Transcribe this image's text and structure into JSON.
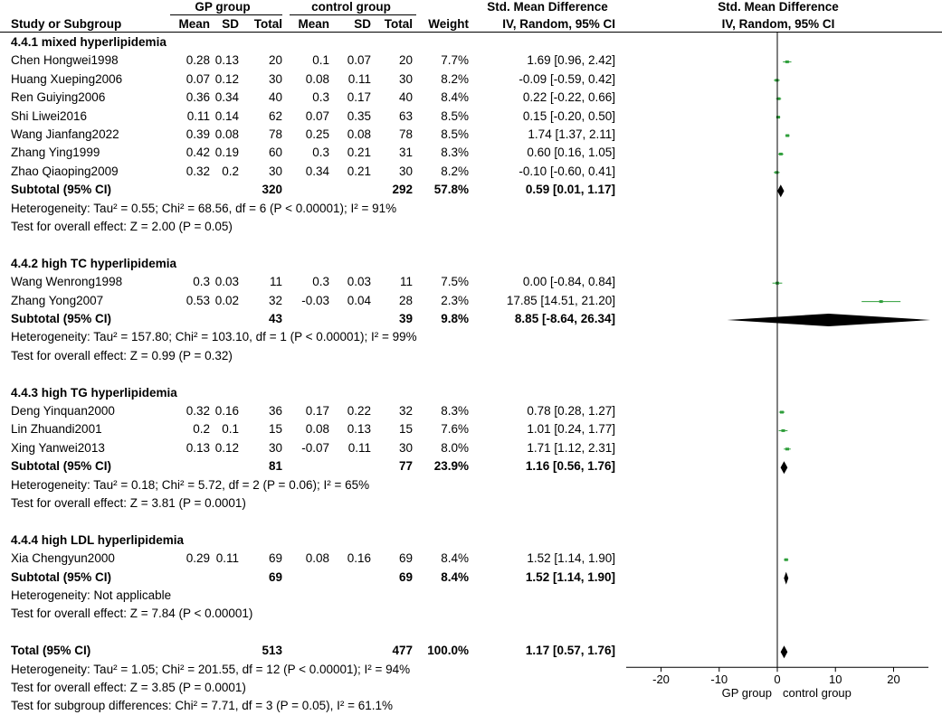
{
  "header": {
    "gp_group": "GP group",
    "control_group": "control group",
    "smd_col": "Std. Mean Difference",
    "smd_method": "IV, Random, 95% CI",
    "plot_title": "Std. Mean Difference",
    "plot_method": "IV, Random, 95% CI",
    "study_col": "Study or Subgroup",
    "mean": "Mean",
    "sd": "SD",
    "total": "Total",
    "weight": "Weight"
  },
  "chart_data": {
    "type": "forest",
    "x_axis": {
      "ticks": [
        "-20",
        "-10",
        "0",
        "10",
        "20"
      ],
      "tick_values": [
        -20,
        -10,
        0,
        10,
        20
      ],
      "range": [
        -26,
        26
      ],
      "left_label": "GP group",
      "right_label": "control group"
    },
    "groups": [
      {
        "name": "4.4.1 mixed hyperlipidemia",
        "studies": [
          {
            "name": "Chen Hongwei1998",
            "gp_mean": "0.28",
            "gp_sd": "0.13",
            "gp_total": "20",
            "ctl_mean": "0.1",
            "ctl_sd": "0.07",
            "ctl_total": "20",
            "weight": "7.7%",
            "ci": "1.69 [0.96, 2.42]",
            "est": 1.69,
            "lo": 0.96,
            "hi": 2.42
          },
          {
            "name": "Huang Xueping2006",
            "gp_mean": "0.07",
            "gp_sd": "0.12",
            "gp_total": "30",
            "ctl_mean": "0.08",
            "ctl_sd": "0.11",
            "ctl_total": "30",
            "weight": "8.2%",
            "ci": "-0.09 [-0.59, 0.42]",
            "est": -0.09,
            "lo": -0.59,
            "hi": 0.42
          },
          {
            "name": "Ren Guiying2006",
            "gp_mean": "0.36",
            "gp_sd": "0.34",
            "gp_total": "40",
            "ctl_mean": "0.3",
            "ctl_sd": "0.17",
            "ctl_total": "40",
            "weight": "8.4%",
            "ci": "0.22 [-0.22, 0.66]",
            "est": 0.22,
            "lo": -0.22,
            "hi": 0.66
          },
          {
            "name": "Shi Liwei2016",
            "gp_mean": "0.11",
            "gp_sd": "0.14",
            "gp_total": "62",
            "ctl_mean": "0.07",
            "ctl_sd": "0.35",
            "ctl_total": "63",
            "weight": "8.5%",
            "ci": "0.15 [-0.20, 0.50]",
            "est": 0.15,
            "lo": -0.2,
            "hi": 0.5
          },
          {
            "name": "Wang Jianfang2022",
            "gp_mean": "0.39",
            "gp_sd": "0.08",
            "gp_total": "78",
            "ctl_mean": "0.25",
            "ctl_sd": "0.08",
            "ctl_total": "78",
            "weight": "8.5%",
            "ci": "1.74 [1.37, 2.11]",
            "est": 1.74,
            "lo": 1.37,
            "hi": 2.11
          },
          {
            "name": "Zhang Ying1999",
            "gp_mean": "0.42",
            "gp_sd": "0.19",
            "gp_total": "60",
            "ctl_mean": "0.3",
            "ctl_sd": "0.21",
            "ctl_total": "31",
            "weight": "8.3%",
            "ci": "0.60 [0.16, 1.05]",
            "est": 0.6,
            "lo": 0.16,
            "hi": 1.05
          },
          {
            "name": "Zhao Qiaoping2009",
            "gp_mean": "0.32",
            "gp_sd": "0.2",
            "gp_total": "30",
            "ctl_mean": "0.34",
            "ctl_sd": "0.21",
            "ctl_total": "30",
            "weight": "8.2%",
            "ci": "-0.10 [-0.60, 0.41]",
            "est": -0.1,
            "lo": -0.6,
            "hi": 0.41
          }
        ],
        "subtotal": {
          "label": "Subtotal (95% CI)",
          "gp_total": "320",
          "ctl_total": "292",
          "weight": "57.8%",
          "ci": "0.59 [0.01, 1.17]",
          "est": 0.59,
          "lo": 0.01,
          "hi": 1.17
        },
        "heterogeneity": "Heterogeneity: Tau² = 0.55; Chi² = 68.56, df = 6 (P < 0.00001); I² = 91%",
        "overall": "Test for overall effect: Z = 2.00 (P = 0.05)"
      },
      {
        "name": "4.4.2 high TC hyperlipidemia",
        "studies": [
          {
            "name": "Wang Wenrong1998",
            "gp_mean": "0.3",
            "gp_sd": "0.03",
            "gp_total": "11",
            "ctl_mean": "0.3",
            "ctl_sd": "0.03",
            "ctl_total": "11",
            "weight": "7.5%",
            "ci": "0.00 [-0.84, 0.84]",
            "est": 0.0,
            "lo": -0.84,
            "hi": 0.84
          },
          {
            "name": "Zhang Yong2007",
            "gp_mean": "0.53",
            "gp_sd": "0.02",
            "gp_total": "32",
            "ctl_mean": "-0.03",
            "ctl_sd": "0.04",
            "ctl_total": "28",
            "weight": "2.3%",
            "ci": "17.85 [14.51, 21.20]",
            "est": 17.85,
            "lo": 14.51,
            "hi": 21.2
          }
        ],
        "subtotal": {
          "label": "Subtotal (95% CI)",
          "gp_total": "43",
          "ctl_total": "39",
          "weight": "9.8%",
          "ci": "8.85 [-8.64, 26.34]",
          "est": 8.85,
          "lo": -8.64,
          "hi": 26.34
        },
        "heterogeneity": "Heterogeneity: Tau² = 157.80; Chi² = 103.10, df = 1 (P < 0.00001); I² = 99%",
        "overall": "Test for overall effect: Z = 0.99 (P = 0.32)"
      },
      {
        "name": "4.4.3 high TG hyperlipidemia",
        "studies": [
          {
            "name": "Deng Yinquan2000",
            "gp_mean": "0.32",
            "gp_sd": "0.16",
            "gp_total": "36",
            "ctl_mean": "0.17",
            "ctl_sd": "0.22",
            "ctl_total": "32",
            "weight": "8.3%",
            "ci": "0.78 [0.28, 1.27]",
            "est": 0.78,
            "lo": 0.28,
            "hi": 1.27
          },
          {
            "name": "Lin Zhuandi2001",
            "gp_mean": "0.2",
            "gp_sd": "0.1",
            "gp_total": "15",
            "ctl_mean": "0.08",
            "ctl_sd": "0.13",
            "ctl_total": "15",
            "weight": "7.6%",
            "ci": "1.01 [0.24, 1.77]",
            "est": 1.01,
            "lo": 0.24,
            "hi": 1.77
          },
          {
            "name": "Xing Yanwei2013",
            "gp_mean": "0.13",
            "gp_sd": "0.12",
            "gp_total": "30",
            "ctl_mean": "-0.07",
            "ctl_sd": "0.11",
            "ctl_total": "30",
            "weight": "8.0%",
            "ci": "1.71 [1.12, 2.31]",
            "est": 1.71,
            "lo": 1.12,
            "hi": 2.31
          }
        ],
        "subtotal": {
          "label": "Subtotal (95% CI)",
          "gp_total": "81",
          "ctl_total": "77",
          "weight": "23.9%",
          "ci": "1.16 [0.56, 1.76]",
          "est": 1.16,
          "lo": 0.56,
          "hi": 1.76
        },
        "heterogeneity": "Heterogeneity: Tau² = 0.18; Chi² = 5.72, df = 2 (P = 0.06); I² = 65%",
        "overall": "Test for overall effect: Z = 3.81 (P = 0.0001)"
      },
      {
        "name": "4.4.4 high LDL hyperlipidemia",
        "studies": [
          {
            "name": "Xia Chengyun2000",
            "gp_mean": "0.29",
            "gp_sd": "0.11",
            "gp_total": "69",
            "ctl_mean": "0.08",
            "ctl_sd": "0.16",
            "ctl_total": "69",
            "weight": "8.4%",
            "ci": "1.52 [1.14, 1.90]",
            "est": 1.52,
            "lo": 1.14,
            "hi": 1.9
          }
        ],
        "subtotal": {
          "label": "Subtotal (95% CI)",
          "gp_total": "69",
          "ctl_total": "69",
          "weight": "8.4%",
          "ci": "1.52 [1.14, 1.90]",
          "est": 1.52,
          "lo": 1.14,
          "hi": 1.9
        },
        "heterogeneity": "Heterogeneity: Not applicable",
        "overall": "Test for overall effect: Z = 7.84 (P < 0.00001)"
      }
    ],
    "total": {
      "label": "Total (95% CI)",
      "gp_total": "513",
      "ctl_total": "477",
      "weight": "100.0%",
      "ci": "1.17 [0.57, 1.76]",
      "est": 1.17,
      "lo": 0.57,
      "hi": 1.76,
      "heterogeneity": "Heterogeneity: Tau² = 1.05; Chi² = 201.55, df = 12 (P < 0.00001); I² = 94%",
      "overall": "Test for overall effect: Z = 3.85 (P = 0.0001)",
      "subgroup": "Test for subgroup differences: Chi² = 7.71, df = 3 (P = 0.05), I² = 61.1%"
    },
    "colors": {
      "study_marker": "#2e9e3a",
      "diamond": "#000000",
      "axis": "#000000"
    }
  }
}
